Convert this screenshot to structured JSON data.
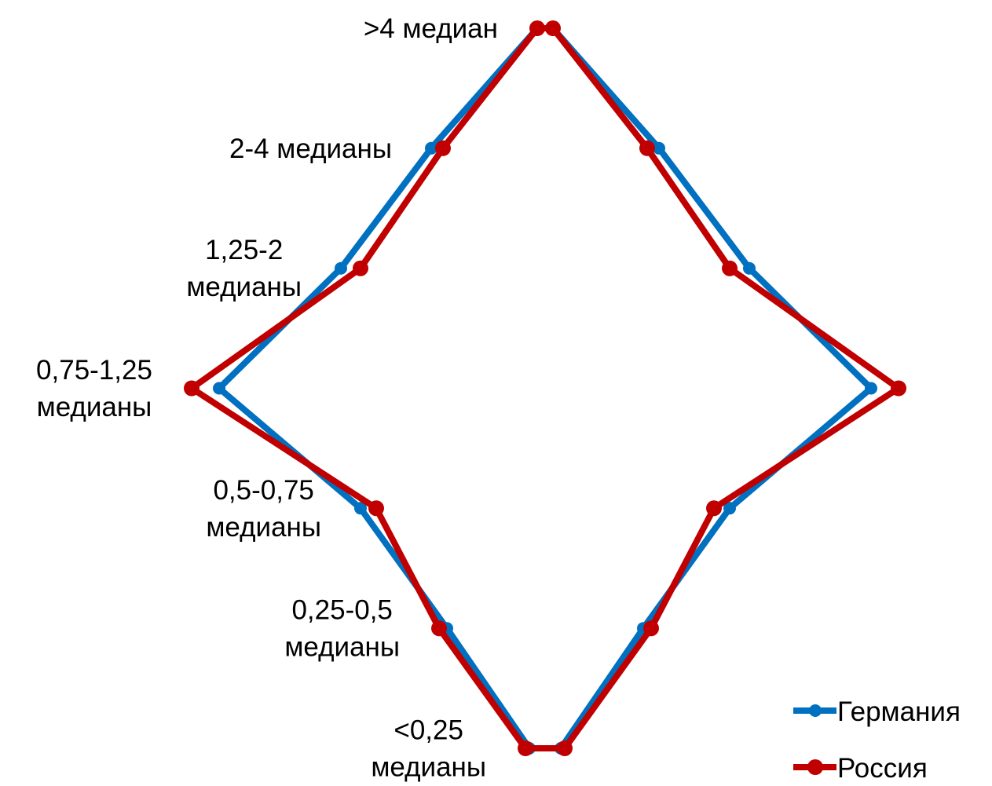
{
  "chart_data": {
    "type": "population-pyramid-line",
    "categories": [
      "<0,25 медианы",
      "0,25-0,5 медианы",
      "0,5-0,75 медианы",
      "0,75-1,25 медианы",
      "1,25-2 медианы",
      "2-4 медианы",
      ">4 медиан"
    ],
    "category_label_lines": [
      [
        "<0,25",
        "медианы"
      ],
      [
        "0,25-0,5",
        "медианы"
      ],
      [
        "0,5-0,75",
        "медианы"
      ],
      [
        "0,75-1,25",
        "медианы"
      ],
      [
        "1,25-2",
        "медианы"
      ],
      [
        "2-4 медианы"
      ],
      [
        ">4 медиан"
      ]
    ],
    "series": [
      {
        "name": "Германия",
        "color": "#0070C0",
        "values": [
          0.4,
          2.5,
          4.7,
          8.3,
          5.2,
          2.9,
          0.2
        ]
      },
      {
        "name": "Россия",
        "color": "#C00000",
        "values": [
          0.5,
          2.7,
          4.3,
          9.0,
          4.7,
          2.6,
          0.2
        ]
      }
    ],
    "xlim": [
      -10,
      10
    ],
    "grid": false,
    "legend_position": "bottom-right"
  }
}
